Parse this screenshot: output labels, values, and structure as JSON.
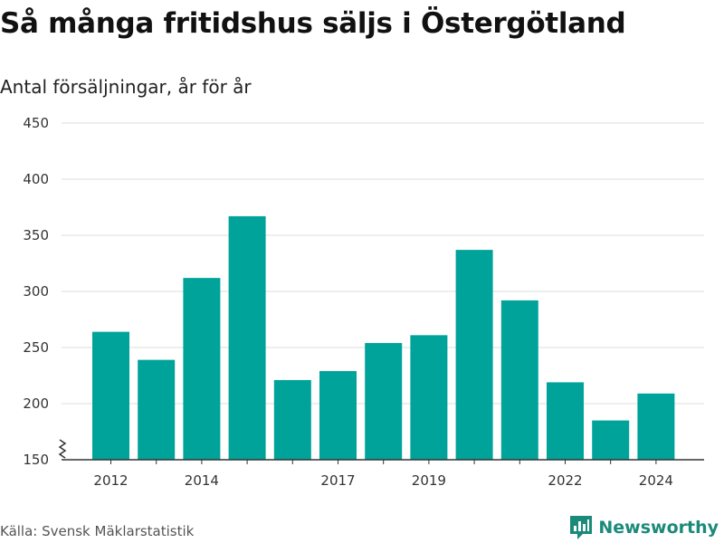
{
  "title": "Så många fritidshus säljs i Östergötland",
  "subtitle": "Antal försäljningar, år för år",
  "source": "Källa: Svensk Mäklarstatistik",
  "brand": "Newsworthy",
  "colors": {
    "bar": "#00a39a",
    "grid": "#dddddd",
    "axis": "#333333",
    "brand": "#1a8a7a"
  },
  "chart_data": {
    "type": "bar",
    "x": [
      2012,
      2013,
      2014,
      2015,
      2016,
      2017,
      2018,
      2019,
      2020,
      2021,
      2022,
      2023,
      2024
    ],
    "values": [
      264,
      239,
      312,
      367,
      221,
      229,
      254,
      261,
      337,
      292,
      219,
      185,
      209
    ],
    "ylim": [
      150,
      450
    ],
    "yticks": [
      150,
      200,
      250,
      300,
      350,
      400,
      450
    ],
    "xtick_labels": [
      "2012",
      "2014",
      "2017",
      "2019",
      "2022",
      "2024"
    ],
    "axis_break": true,
    "grid": true
  }
}
